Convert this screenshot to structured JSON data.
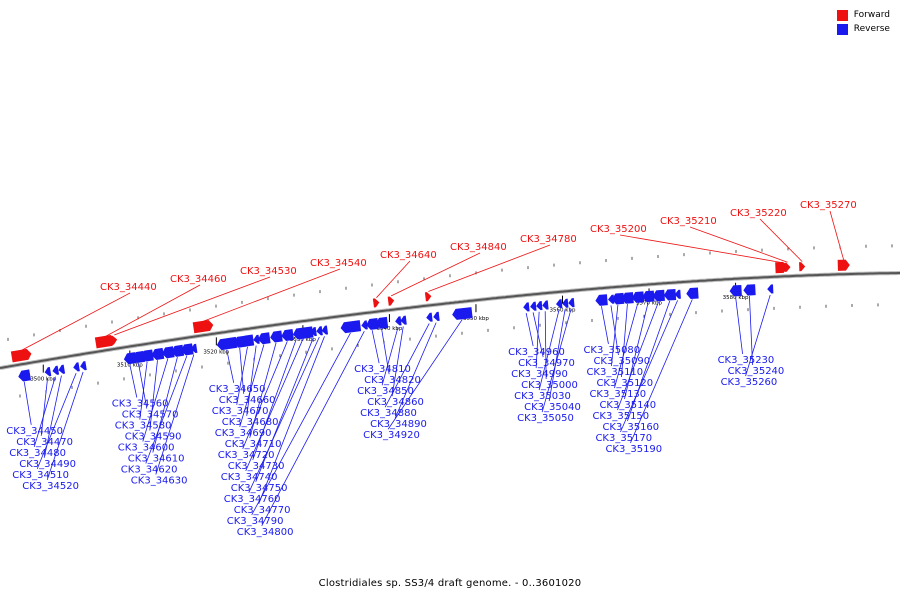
{
  "legend": {
    "forward": {
      "label": "Forward",
      "color": "#ee1111"
    },
    "reverse": {
      "label": "Reverse",
      "color": "#1a1aee"
    }
  },
  "caption": "Clostridiales sp. SS3/4 draft genome. - 0..3601020",
  "scale": {
    "start_kbp": 3495,
    "end_kbp": 3599
  },
  "ticks": [
    {
      "kbp": 3500,
      "label": "3500 kbp"
    },
    {
      "kbp": 3510,
      "label": "3510 kbp"
    },
    {
      "kbp": 3520,
      "label": "3520 kbp"
    },
    {
      "kbp": 3530,
      "label": "3530 kbp"
    },
    {
      "kbp": 3540,
      "label": "3540 kbp"
    },
    {
      "kbp": 3550,
      "label": "3550 kbp"
    },
    {
      "kbp": 3560,
      "label": "3560 kbp"
    },
    {
      "kbp": 3570,
      "label": "3570 kbp"
    },
    {
      "kbp": 3580,
      "label": "3580 kbp"
    }
  ],
  "genes": [
    {
      "id": "CK3_34440",
      "strand": "+",
      "kbp": 3497.5,
      "size": "l"
    },
    {
      "id": "CK3_34450",
      "strand": "-",
      "kbp": 3497.8,
      "size": "m"
    },
    {
      "id": "CK3_34460",
      "strand": "+",
      "kbp": 3507.2,
      "size": "l"
    },
    {
      "id": "CK3_34470",
      "strand": "-",
      "kbp": 3500.5,
      "size": "s"
    },
    {
      "id": "CK3_34480",
      "strand": "-",
      "kbp": 3501.4,
      "size": "s"
    },
    {
      "id": "CK3_34490",
      "strand": "-",
      "kbp": 3502.1,
      "size": "s"
    },
    {
      "id": "CK3_34510",
      "strand": "-",
      "kbp": 3503.8,
      "size": "s"
    },
    {
      "id": "CK3_34520",
      "strand": "-",
      "kbp": 3504.6,
      "size": "s"
    },
    {
      "id": "CK3_34530",
      "strand": "+",
      "kbp": 3508.2,
      "size": "s"
    },
    {
      "id": "CK3_34540",
      "strand": "+",
      "kbp": 3518.5,
      "size": "l"
    },
    {
      "id": "CK3_34560",
      "strand": "-",
      "kbp": 3510.0,
      "size": "m"
    },
    {
      "id": "CK3_34570",
      "strand": "-",
      "kbp": 3511.0,
      "size": "m"
    },
    {
      "id": "CK3_34580",
      "strand": "-",
      "kbp": 3512.0,
      "size": "m"
    },
    {
      "id": "CK3_34590",
      "strand": "-",
      "kbp": 3513.2,
      "size": "m"
    },
    {
      "id": "CK3_34600",
      "strand": "-",
      "kbp": 3514.4,
      "size": "m"
    },
    {
      "id": "CK3_34610",
      "strand": "-",
      "kbp": 3515.5,
      "size": "m"
    },
    {
      "id": "CK3_34620",
      "strand": "-",
      "kbp": 3516.6,
      "size": "m"
    },
    {
      "id": "CK3_34630",
      "strand": "-",
      "kbp": 3517.4,
      "size": "s"
    },
    {
      "id": "CK3_34640",
      "strand": "+",
      "kbp": 3538.5,
      "size": "s"
    },
    {
      "id": "CK3_34650",
      "strand": "-",
      "kbp": 3521.2,
      "size": "l"
    },
    {
      "id": "CK3_34660",
      "strand": "-",
      "kbp": 3522.7,
      "size": "m"
    },
    {
      "id": "CK3_34670",
      "strand": "-",
      "kbp": 3523.6,
      "size": "m"
    },
    {
      "id": "CK3_34680",
      "strand": "-",
      "kbp": 3524.6,
      "size": "s"
    },
    {
      "id": "CK3_34690",
      "strand": "-",
      "kbp": 3525.5,
      "size": "m"
    },
    {
      "id": "CK3_34710",
      "strand": "-",
      "kbp": 3526.9,
      "size": "m"
    },
    {
      "id": "CK3_34720",
      "strand": "-",
      "kbp": 3528.2,
      "size": "m"
    },
    {
      "id": "CK3_34730",
      "strand": "-",
      "kbp": 3529.2,
      "size": "s"
    },
    {
      "id": "CK3_34740",
      "strand": "-",
      "kbp": 3530.0,
      "size": "l"
    },
    {
      "id": "CK3_34750",
      "strand": "-",
      "kbp": 3531.2,
      "size": "s"
    },
    {
      "id": "CK3_34760",
      "strand": "-",
      "kbp": 3531.9,
      "size": "s"
    },
    {
      "id": "CK3_34770",
      "strand": "-",
      "kbp": 3532.5,
      "size": "s"
    },
    {
      "id": "CK3_34780",
      "strand": "+",
      "kbp": 3544.5,
      "size": "s"
    },
    {
      "id": "CK3_34790",
      "strand": "-",
      "kbp": 3535.5,
      "size": "l"
    },
    {
      "id": "CK3_34800",
      "strand": "-",
      "kbp": 3537.1,
      "size": "s"
    },
    {
      "id": "CK3_34810",
      "strand": "-",
      "kbp": 3538.0,
      "size": "m"
    },
    {
      "id": "CK3_34820",
      "strand": "-",
      "kbp": 3539.1,
      "size": "m"
    },
    {
      "id": "CK3_34840",
      "strand": "+",
      "kbp": 3540.2,
      "size": "s"
    },
    {
      "id": "CK3_34850",
      "strand": "-",
      "kbp": 3541.0,
      "size": "s"
    },
    {
      "id": "CK3_34860",
      "strand": "-",
      "kbp": 3541.6,
      "size": "s"
    },
    {
      "id": "CK3_34880",
      "strand": "-",
      "kbp": 3544.6,
      "size": "s"
    },
    {
      "id": "CK3_34890",
      "strand": "-",
      "kbp": 3545.4,
      "size": "s"
    },
    {
      "id": "CK3_34920",
      "strand": "-",
      "kbp": 3548.4,
      "size": "l"
    },
    {
      "id": "CK3_34960",
      "strand": "-",
      "kbp": 3555.8,
      "size": "s"
    },
    {
      "id": "CK3_34970",
      "strand": "-",
      "kbp": 3556.6,
      "size": "s"
    },
    {
      "id": "CK3_34990",
      "strand": "-",
      "kbp": 3557.3,
      "size": "s"
    },
    {
      "id": "CK3_35000",
      "strand": "-",
      "kbp": 3558.0,
      "size": "s"
    },
    {
      "id": "CK3_35030",
      "strand": "-",
      "kbp": 3559.6,
      "size": "s"
    },
    {
      "id": "CK3_35040",
      "strand": "-",
      "kbp": 3560.3,
      "size": "s"
    },
    {
      "id": "CK3_35050",
      "strand": "-",
      "kbp": 3561.0,
      "size": "s"
    },
    {
      "id": "CK3_35080",
      "strand": "-",
      "kbp": 3564.5,
      "size": "m"
    },
    {
      "id": "CK3_35090",
      "strand": "-",
      "kbp": 3565.6,
      "size": "s"
    },
    {
      "id": "CK3_35110",
      "strand": "-",
      "kbp": 3566.4,
      "size": "m"
    },
    {
      "id": "CK3_35120",
      "strand": "-",
      "kbp": 3567.5,
      "size": "m"
    },
    {
      "id": "CK3_35130",
      "strand": "-",
      "kbp": 3568.7,
      "size": "m"
    },
    {
      "id": "CK3_35140",
      "strand": "-",
      "kbp": 3569.9,
      "size": "m"
    },
    {
      "id": "CK3_35150",
      "strand": "-",
      "kbp": 3571.1,
      "size": "m"
    },
    {
      "id": "CK3_35160",
      "strand": "-",
      "kbp": 3572.4,
      "size": "m"
    },
    {
      "id": "CK3_35170",
      "strand": "-",
      "kbp": 3573.3,
      "size": "s"
    },
    {
      "id": "CK3_35190",
      "strand": "-",
      "kbp": 3575.0,
      "size": "m"
    },
    {
      "id": "CK3_35200",
      "strand": "+",
      "kbp": 3585.3,
      "size": "m"
    },
    {
      "id": "CK3_35210",
      "strand": "+",
      "kbp": 3586.0,
      "size": "s"
    },
    {
      "id": "CK3_35220",
      "strand": "+",
      "kbp": 3587.7,
      "size": "s"
    },
    {
      "id": "CK3_35230",
      "strand": "-",
      "kbp": 3580.0,
      "size": "m"
    },
    {
      "id": "CK3_35240",
      "strand": "-",
      "kbp": 3581.6,
      "size": "m"
    },
    {
      "id": "CK3_35260",
      "strand": "-",
      "kbp": 3584.0,
      "size": "s"
    },
    {
      "id": "CK3_35270",
      "strand": "+",
      "kbp": 3592.5,
      "size": "m"
    }
  ]
}
